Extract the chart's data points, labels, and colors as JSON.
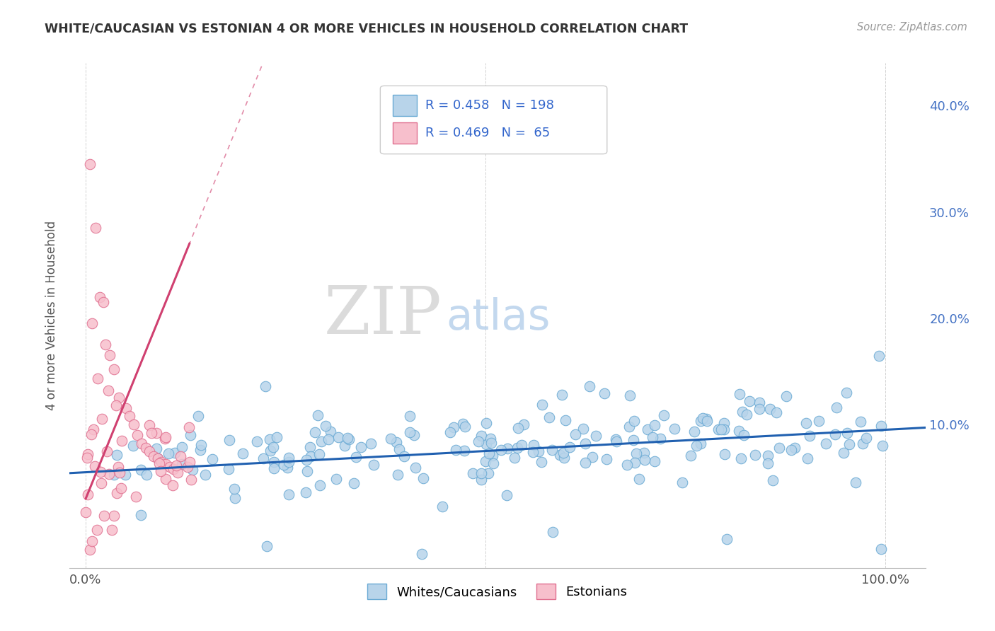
{
  "title": "WHITE/CAUCASIAN VS ESTONIAN 4 OR MORE VEHICLES IN HOUSEHOLD CORRELATION CHART",
  "source": "Source: ZipAtlas.com",
  "ylabel": "4 or more Vehicles in Household",
  "legend_label_blue": "Whites/Caucasians",
  "legend_label_pink": "Estonians",
  "legend_R_blue": "0.458",
  "legend_N_blue": "198",
  "legend_R_pink": "0.469",
  "legend_N_pink": " 65",
  "blue_fill": "#b8d4ea",
  "blue_edge": "#6aaad4",
  "pink_fill": "#f7bfcc",
  "pink_edge": "#e07090",
  "blue_line_color": "#2060b0",
  "pink_line_color": "#d04070",
  "pink_line_dash": [
    6,
    4
  ],
  "watermark_ZIP_color": "#cccccc",
  "watermark_atlas_color": "#aac8e8",
  "xlim": [
    -0.02,
    1.05
  ],
  "ylim": [
    -0.035,
    0.44
  ],
  "background_color": "#ffffff",
  "grid_color": "#cccccc",
  "tick_color": "#555555",
  "right_tick_color": "#4472c4",
  "title_color": "#333333",
  "source_color": "#999999",
  "ylabel_color": "#555555"
}
